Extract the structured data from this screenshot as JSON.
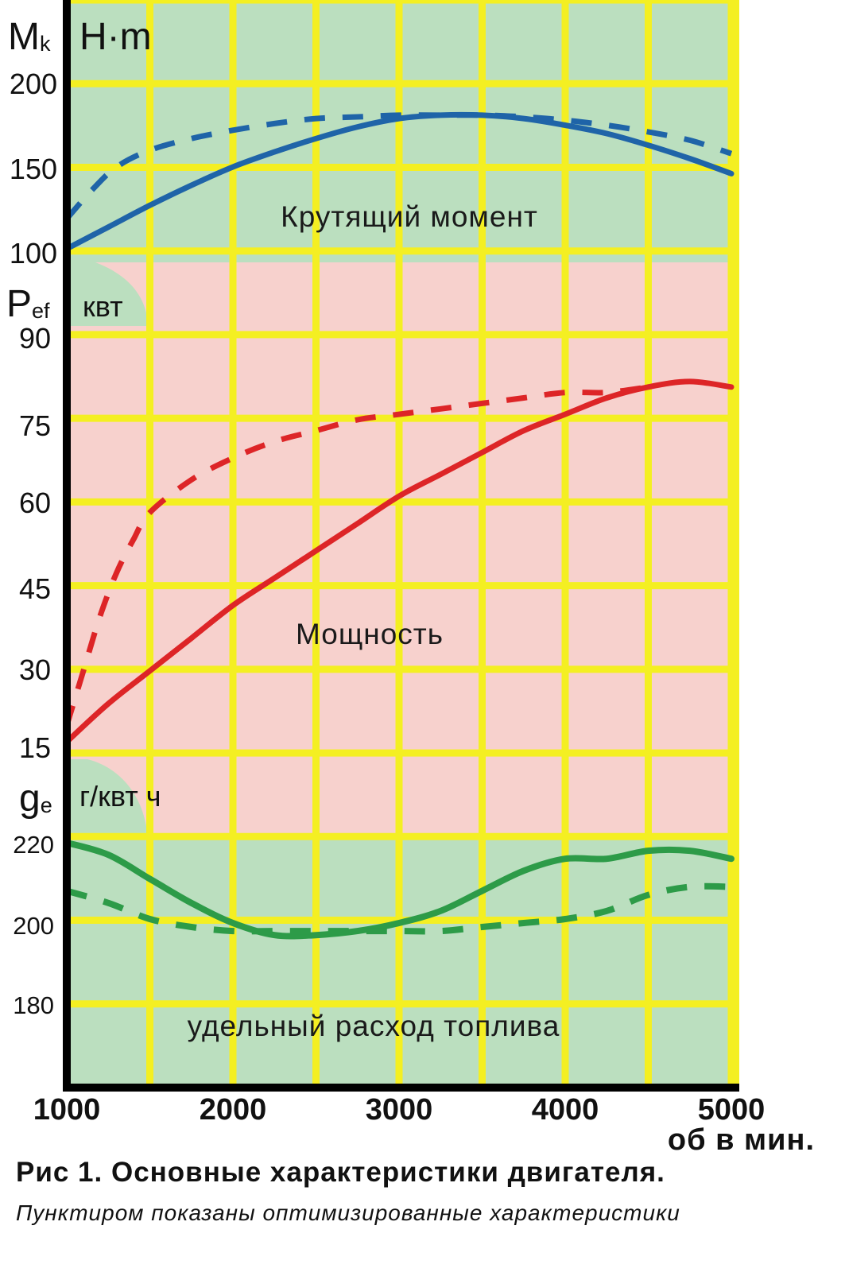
{
  "caption": {
    "title": "Рис 1. Основные характеристики двигателя.",
    "subtitle": "Пунктиром показаны оптимизированные характеристики"
  },
  "colors": {
    "grid": "#f4ef22",
    "torque_bg": "#bbdfbf",
    "power_bg": "#f7d1cd",
    "fuel_bg": "#bbdfbf",
    "torque_line": "#1f64a8",
    "power_line": "#dd2527",
    "fuel_line": "#2d9b48",
    "axis": "#000000"
  },
  "chart_data": {
    "type": "line",
    "x_axis": {
      "ticks": [
        "1000",
        "2000",
        "3000",
        "4000",
        "5000"
      ],
      "label": "об в мин.",
      "range": [
        1000,
        5000
      ]
    },
    "panels": [
      {
        "id": "torque",
        "title": "Крутящий момент",
        "symbol": "M",
        "subscript": "k",
        "unit": "H·m",
        "ticks": [
          "200",
          "150",
          "100"
        ],
        "ylim": [
          100,
          200
        ],
        "series": [
          {
            "style": "solid",
            "x": [
              1000,
              1250,
              1500,
              1750,
              2000,
              2250,
              2500,
              2750,
              3000,
              3250,
              3500,
              3750,
              4000,
              4250,
              4500,
              4750,
              5000
            ],
            "y": [
              101,
              114,
              127,
              139,
              150,
              159,
              167,
              174,
              179,
              181,
              181,
              179,
              175,
              170,
              163,
              155,
              146
            ]
          },
          {
            "style": "dashed",
            "x": [
              1000,
              1150,
              1300,
              1500,
              1750,
              2000,
              2250,
              2500,
              2750,
              3000,
              3250,
              3500,
              3750,
              4000,
              4250,
              4500,
              4750,
              5000
            ],
            "y": [
              119,
              136,
              150,
              160,
              167,
              172,
              176,
              179,
              180,
              181,
              181,
              181,
              180,
              178,
              175,
              171,
              166,
              158
            ]
          }
        ]
      },
      {
        "id": "power",
        "title": "Мощность",
        "symbol": "P",
        "subscript": "ef",
        "unit": "квт",
        "ticks": [
          "90",
          "75",
          "60",
          "45",
          "30",
          "15"
        ],
        "ylim": [
          15,
          90
        ],
        "series": [
          {
            "style": "solid",
            "x": [
              1000,
              1250,
              1500,
              1750,
              2000,
              2250,
              2500,
              2750,
              3000,
              3250,
              3500,
              3750,
              4000,
              4250,
              4500,
              4750,
              5000
            ],
            "y": [
              16,
              23,
              29,
              35,
              41,
              46,
              51,
              56,
              61,
              65,
              69,
              73,
              76,
              79,
              81,
              82,
              81
            ]
          },
          {
            "style": "dashed",
            "x": [
              1000,
              1100,
              1200,
              1300,
              1400,
              1500,
              1750,
              2000,
              2250,
              2500,
              2750,
              3000,
              3250,
              3500,
              3750,
              4000,
              4250,
              4500
            ],
            "y": [
              19,
              29,
              39,
              47,
              53,
              58,
              64,
              68,
              71,
              73,
              75,
              76,
              77,
              78,
              79,
              80,
              80,
              81
            ]
          }
        ]
      },
      {
        "id": "fuel",
        "title": "удельный расход топлива",
        "symbol": "g",
        "subscript": "e",
        "unit": "г/квт ч",
        "ticks": [
          "220",
          "200",
          "180"
        ],
        "ylim": [
          180,
          220
        ],
        "series": [
          {
            "style": "solid",
            "x": [
              1000,
              1250,
              1500,
              1750,
              2000,
              2250,
              2500,
              2750,
              3000,
              3250,
              3500,
              3750,
              4000,
              4250,
              4500,
              4750,
              5000
            ],
            "y": [
              220,
              217,
              211,
              205,
              200,
              197,
              197,
              198,
              200,
              203,
              208,
              213,
              216,
              216,
              218,
              218,
              216
            ]
          },
          {
            "style": "dashed",
            "x": [
              1000,
              1250,
              1500,
              1750,
              2000,
              2250,
              2500,
              2750,
              3000,
              3250,
              3500,
              3750,
              4000,
              4250,
              4500,
              4750,
              5000
            ],
            "y": [
              208,
              205,
              201,
              199,
              198,
              198,
              198,
              198,
              198,
              198,
              199,
              200,
              201,
              203,
              207,
              209,
              209
            ]
          }
        ]
      }
    ]
  }
}
